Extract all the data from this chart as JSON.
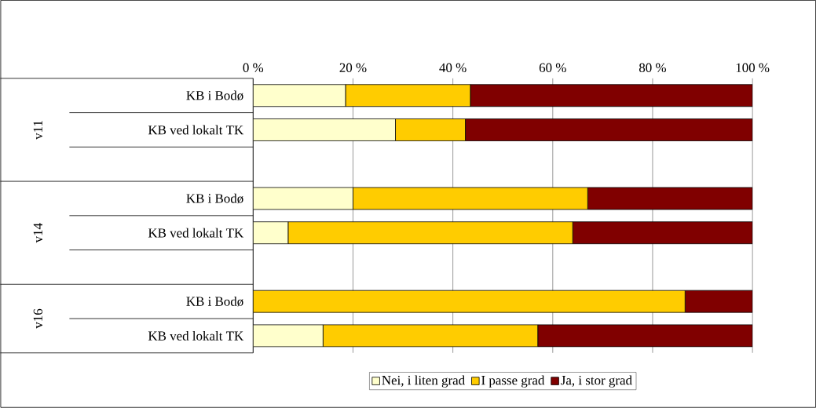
{
  "chart_data": {
    "type": "bar",
    "orientation": "horizontal",
    "stacked": true,
    "categories": [
      "KB i Bodø",
      "KB ved lokalt TK",
      null,
      "KB i Bodø",
      "KB ved lokalt TK",
      null,
      "KB i Bodø",
      "KB ved lokalt TK"
    ],
    "series": [
      {
        "name": "Nei, i liten grad",
        "color": "#ffffcc",
        "values": [
          18.5,
          28.5,
          null,
          20,
          7,
          null,
          0,
          14
        ]
      },
      {
        "name": "I passe grad",
        "color": "#ffcc00",
        "values": [
          25,
          14,
          null,
          47,
          57,
          null,
          86.5,
          43
        ]
      },
      {
        "name": "Ja, i stor grad",
        "color": "#800000",
        "values": [
          56.5,
          57.5,
          null,
          33,
          36,
          null,
          13.5,
          43
        ]
      }
    ],
    "xlim": [
      0,
      100
    ],
    "xticks": [
      {
        "value": 0,
        "label": "0 %"
      },
      {
        "value": 20,
        "label": "20 %"
      },
      {
        "value": 40,
        "label": "40 %"
      },
      {
        "value": 60,
        "label": "60 %"
      },
      {
        "value": 80,
        "label": "80 %"
      },
      {
        "value": 100,
        "label": "100 %"
      }
    ],
    "grid": "x",
    "legend": "bottom",
    "annotations": [
      "v11",
      "v14",
      "v16"
    ]
  }
}
